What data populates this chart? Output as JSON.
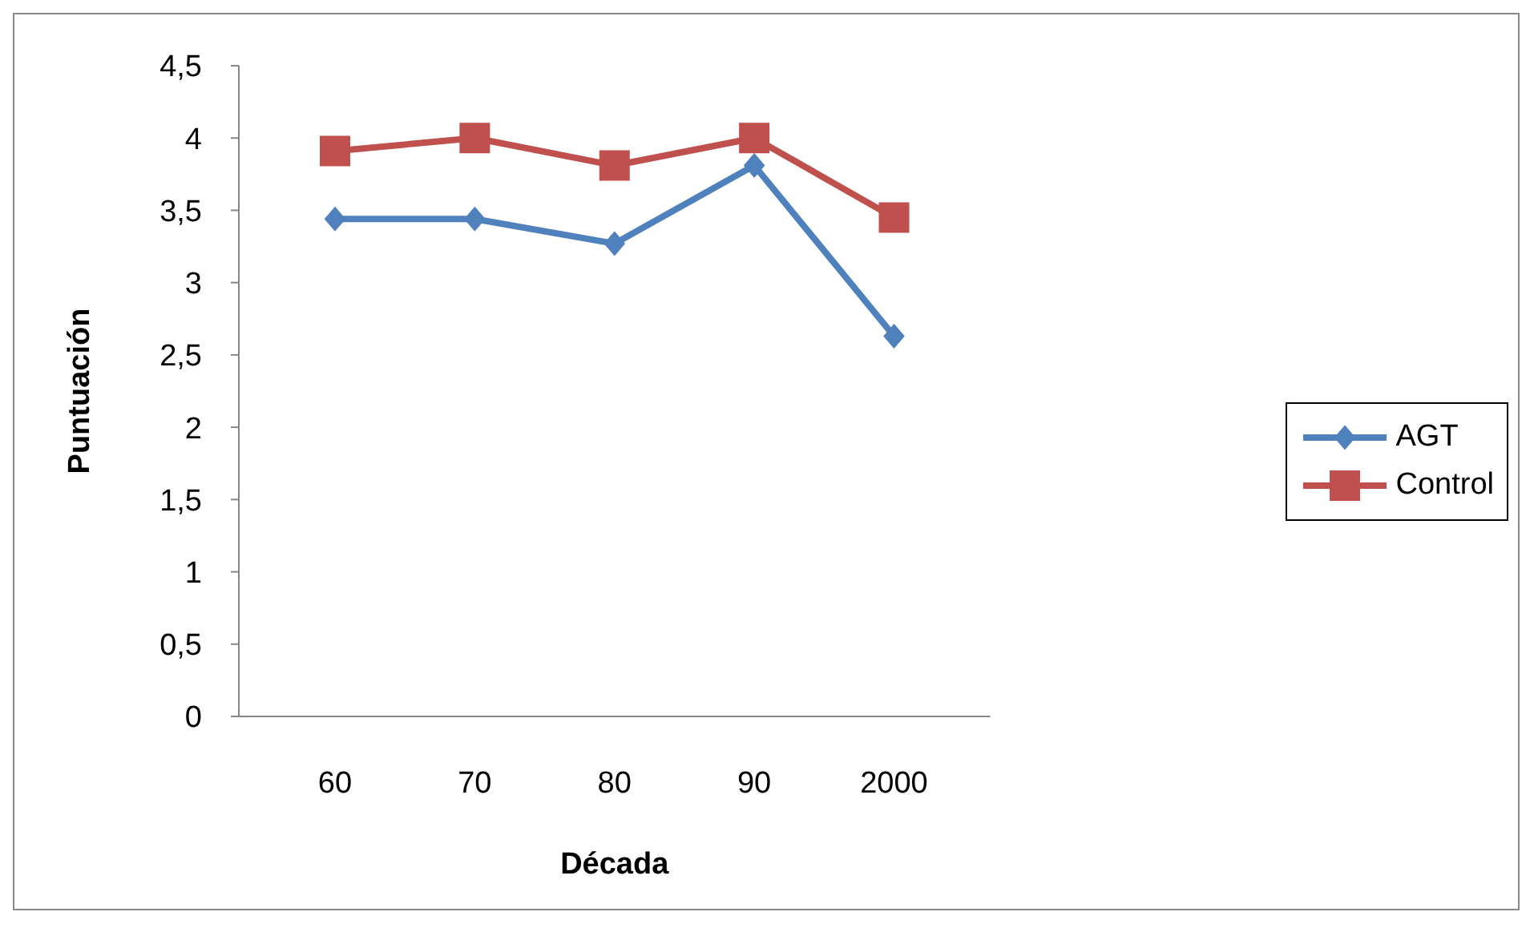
{
  "chart_data": {
    "type": "line",
    "xlabel": "Década",
    "ylabel": "Puntuación",
    "categories": [
      "60",
      "70",
      "80",
      "90",
      "2000"
    ],
    "series": [
      {
        "name": "AGT",
        "color": "#4f81bd",
        "marker": "diamond",
        "values": [
          3.44,
          3.44,
          3.27,
          3.81,
          2.63
        ]
      },
      {
        "name": "Control",
        "color": "#c0504d",
        "marker": "square",
        "values": [
          3.91,
          4.0,
          3.81,
          4.0,
          3.45
        ]
      }
    ],
    "ylim": [
      0,
      4.5
    ],
    "yticks": [
      0,
      {
        "value": 0.5,
        "label": "0,5"
      },
      1,
      {
        "value": 1.5,
        "label": "1,5"
      },
      2,
      {
        "value": 2.5,
        "label": "2,5"
      },
      3,
      {
        "value": 3.5,
        "label": "3,5"
      },
      4,
      {
        "value": 4.5,
        "label": "4,5"
      }
    ],
    "grid": false,
    "legend": "right",
    "line_style": "solid"
  }
}
